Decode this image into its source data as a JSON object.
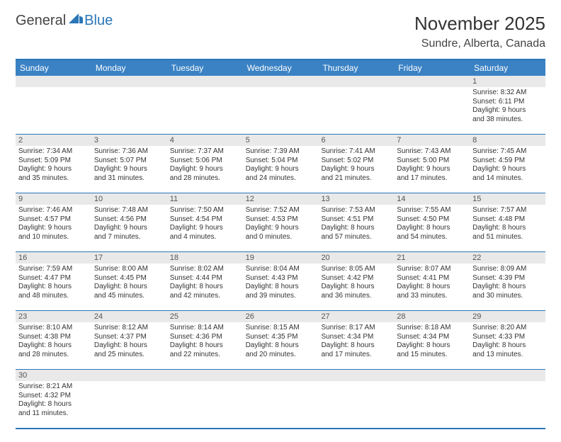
{
  "logo": {
    "general": "General",
    "blue": "Blue"
  },
  "title": "November 2025",
  "location": "Sundre, Alberta, Canada",
  "colors": {
    "header_bg": "#3a82c4",
    "border": "#2a76b8",
    "daynum_bg": "#e9e9e9",
    "text": "#333333",
    "logo_blue": "#2a76b8"
  },
  "day_headers": [
    "Sunday",
    "Monday",
    "Tuesday",
    "Wednesday",
    "Thursday",
    "Friday",
    "Saturday"
  ],
  "weeks": [
    {
      "nums": [
        "",
        "",
        "",
        "",
        "",
        "",
        "1"
      ],
      "cells": [
        null,
        null,
        null,
        null,
        null,
        null,
        {
          "sr": "8:32 AM",
          "ss": "6:11 PM",
          "dh": "9",
          "dm": "38"
        }
      ]
    },
    {
      "nums": [
        "2",
        "3",
        "4",
        "5",
        "6",
        "7",
        "8"
      ],
      "cells": [
        {
          "sr": "7:34 AM",
          "ss": "5:09 PM",
          "dh": "9",
          "dm": "35"
        },
        {
          "sr": "7:36 AM",
          "ss": "5:07 PM",
          "dh": "9",
          "dm": "31"
        },
        {
          "sr": "7:37 AM",
          "ss": "5:06 PM",
          "dh": "9",
          "dm": "28"
        },
        {
          "sr": "7:39 AM",
          "ss": "5:04 PM",
          "dh": "9",
          "dm": "24"
        },
        {
          "sr": "7:41 AM",
          "ss": "5:02 PM",
          "dh": "9",
          "dm": "21"
        },
        {
          "sr": "7:43 AM",
          "ss": "5:00 PM",
          "dh": "9",
          "dm": "17"
        },
        {
          "sr": "7:45 AM",
          "ss": "4:59 PM",
          "dh": "9",
          "dm": "14"
        }
      ]
    },
    {
      "nums": [
        "9",
        "10",
        "11",
        "12",
        "13",
        "14",
        "15"
      ],
      "cells": [
        {
          "sr": "7:46 AM",
          "ss": "4:57 PM",
          "dh": "9",
          "dm": "10"
        },
        {
          "sr": "7:48 AM",
          "ss": "4:56 PM",
          "dh": "9",
          "dm": "7"
        },
        {
          "sr": "7:50 AM",
          "ss": "4:54 PM",
          "dh": "9",
          "dm": "4"
        },
        {
          "sr": "7:52 AM",
          "ss": "4:53 PM",
          "dh": "9",
          "dm": "0"
        },
        {
          "sr": "7:53 AM",
          "ss": "4:51 PM",
          "dh": "8",
          "dm": "57"
        },
        {
          "sr": "7:55 AM",
          "ss": "4:50 PM",
          "dh": "8",
          "dm": "54"
        },
        {
          "sr": "7:57 AM",
          "ss": "4:48 PM",
          "dh": "8",
          "dm": "51"
        }
      ]
    },
    {
      "nums": [
        "16",
        "17",
        "18",
        "19",
        "20",
        "21",
        "22"
      ],
      "cells": [
        {
          "sr": "7:59 AM",
          "ss": "4:47 PM",
          "dh": "8",
          "dm": "48"
        },
        {
          "sr": "8:00 AM",
          "ss": "4:45 PM",
          "dh": "8",
          "dm": "45"
        },
        {
          "sr": "8:02 AM",
          "ss": "4:44 PM",
          "dh": "8",
          "dm": "42"
        },
        {
          "sr": "8:04 AM",
          "ss": "4:43 PM",
          "dh": "8",
          "dm": "39"
        },
        {
          "sr": "8:05 AM",
          "ss": "4:42 PM",
          "dh": "8",
          "dm": "36"
        },
        {
          "sr": "8:07 AM",
          "ss": "4:41 PM",
          "dh": "8",
          "dm": "33"
        },
        {
          "sr": "8:09 AM",
          "ss": "4:39 PM",
          "dh": "8",
          "dm": "30"
        }
      ]
    },
    {
      "nums": [
        "23",
        "24",
        "25",
        "26",
        "27",
        "28",
        "29"
      ],
      "cells": [
        {
          "sr": "8:10 AM",
          "ss": "4:38 PM",
          "dh": "8",
          "dm": "28"
        },
        {
          "sr": "8:12 AM",
          "ss": "4:37 PM",
          "dh": "8",
          "dm": "25"
        },
        {
          "sr": "8:14 AM",
          "ss": "4:36 PM",
          "dh": "8",
          "dm": "22"
        },
        {
          "sr": "8:15 AM",
          "ss": "4:35 PM",
          "dh": "8",
          "dm": "20"
        },
        {
          "sr": "8:17 AM",
          "ss": "4:34 PM",
          "dh": "8",
          "dm": "17"
        },
        {
          "sr": "8:18 AM",
          "ss": "4:34 PM",
          "dh": "8",
          "dm": "15"
        },
        {
          "sr": "8:20 AM",
          "ss": "4:33 PM",
          "dh": "8",
          "dm": "13"
        }
      ]
    },
    {
      "nums": [
        "30",
        "",
        "",
        "",
        "",
        "",
        ""
      ],
      "cells": [
        {
          "sr": "8:21 AM",
          "ss": "4:32 PM",
          "dh": "8",
          "dm": "11"
        },
        null,
        null,
        null,
        null,
        null,
        null
      ]
    }
  ]
}
